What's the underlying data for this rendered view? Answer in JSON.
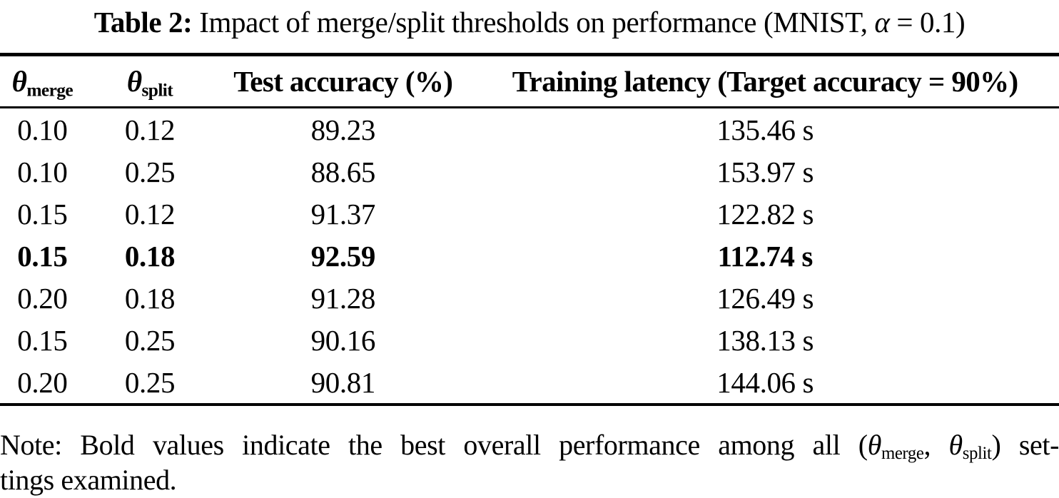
{
  "colors": {
    "text": "#000000",
    "background": "#ffffff"
  },
  "caption": {
    "label": "Table 2:",
    "body": " Impact of merge/split thresholds on performance (MNIST, ",
    "alpha": "α",
    "tail": " = 0.1)"
  },
  "columns": [
    {
      "symbol": "θ",
      "subscript": "merge"
    },
    {
      "symbol": "θ",
      "subscript": "split"
    },
    {
      "label": "Test accuracy (%)"
    },
    {
      "label": "Training latency (Target accuracy = 90%)"
    }
  ],
  "rows": [
    {
      "theta_merge": "0.10",
      "theta_split": "0.12",
      "test_accuracy": "89.23",
      "training_latency": "135.46 s",
      "bold": false
    },
    {
      "theta_merge": "0.10",
      "theta_split": "0.25",
      "test_accuracy": "88.65",
      "training_latency": "153.97 s",
      "bold": false
    },
    {
      "theta_merge": "0.15",
      "theta_split": "0.12",
      "test_accuracy": "91.37",
      "training_latency": "122.82 s",
      "bold": false
    },
    {
      "theta_merge": "0.15",
      "theta_split": "0.18",
      "test_accuracy": "92.59",
      "training_latency": "112.74 s",
      "bold": true
    },
    {
      "theta_merge": "0.20",
      "theta_split": "0.18",
      "test_accuracy": "91.28",
      "training_latency": "126.49 s",
      "bold": false
    },
    {
      "theta_merge": "0.15",
      "theta_split": "0.25",
      "test_accuracy": "90.16",
      "training_latency": "138.13 s",
      "bold": false
    },
    {
      "theta_merge": "0.20",
      "theta_split": "0.25",
      "test_accuracy": "90.81",
      "training_latency": "144.06 s",
      "bold": false
    }
  ],
  "note": {
    "line1_prefix": "Note: Bold values indicate the best overall performance among all (",
    "theta1": "θ",
    "sub1": "merge",
    "separator": ", ",
    "theta2": "θ",
    "sub2": "split",
    "line1_suffix": ") set-",
    "line2": "tings examined."
  },
  "chart_data": {
    "type": "table",
    "title": "Table 2: Impact of merge/split thresholds on performance (MNIST, α = 0.1)",
    "columns": [
      "θ_merge",
      "θ_split",
      "Test accuracy (%)",
      "Training latency (Target accuracy = 90%)"
    ],
    "rows": [
      [
        "0.10",
        "0.12",
        "89.23",
        "135.46 s"
      ],
      [
        "0.10",
        "0.25",
        "88.65",
        "153.97 s"
      ],
      [
        "0.15",
        "0.12",
        "91.37",
        "122.82 s"
      ],
      [
        "0.15",
        "0.18",
        "92.59",
        "112.74 s"
      ],
      [
        "0.20",
        "0.18",
        "91.28",
        "126.49 s"
      ],
      [
        "0.15",
        "0.25",
        "90.16",
        "138.13 s"
      ],
      [
        "0.20",
        "0.25",
        "90.81",
        "144.06 s"
      ]
    ],
    "best_row_index": 3,
    "note": "Note: Bold values indicate the best overall performance among all (θ_merge, θ_split) settings examined."
  }
}
